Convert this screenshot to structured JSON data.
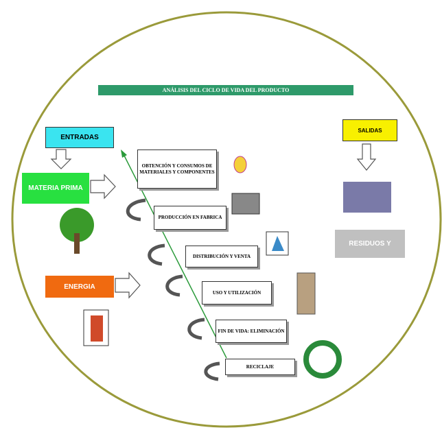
{
  "title": "ANÁLISIS DEL CICLO DE VIDA DEL PRODUCTO",
  "inputs": {
    "header": "ENTRADAS",
    "items": [
      "MATERIA PRIMA",
      "ENERGIA"
    ]
  },
  "outputs": {
    "header": "SALIDAS",
    "items": [
      "RESIDUOS Y"
    ]
  },
  "stages": [
    "OBTENCIÓN Y CONSUMOS DE MATERIALES Y COMPONENTES",
    "PRODUCCIÓN EN FABRICA",
    "DISTRIBUCIÓN Y VENTA",
    "USO Y UTILIZACIÓN",
    "FIN DE VIDA: ELIMINACIÓN",
    "RECICLAJE"
  ]
}
